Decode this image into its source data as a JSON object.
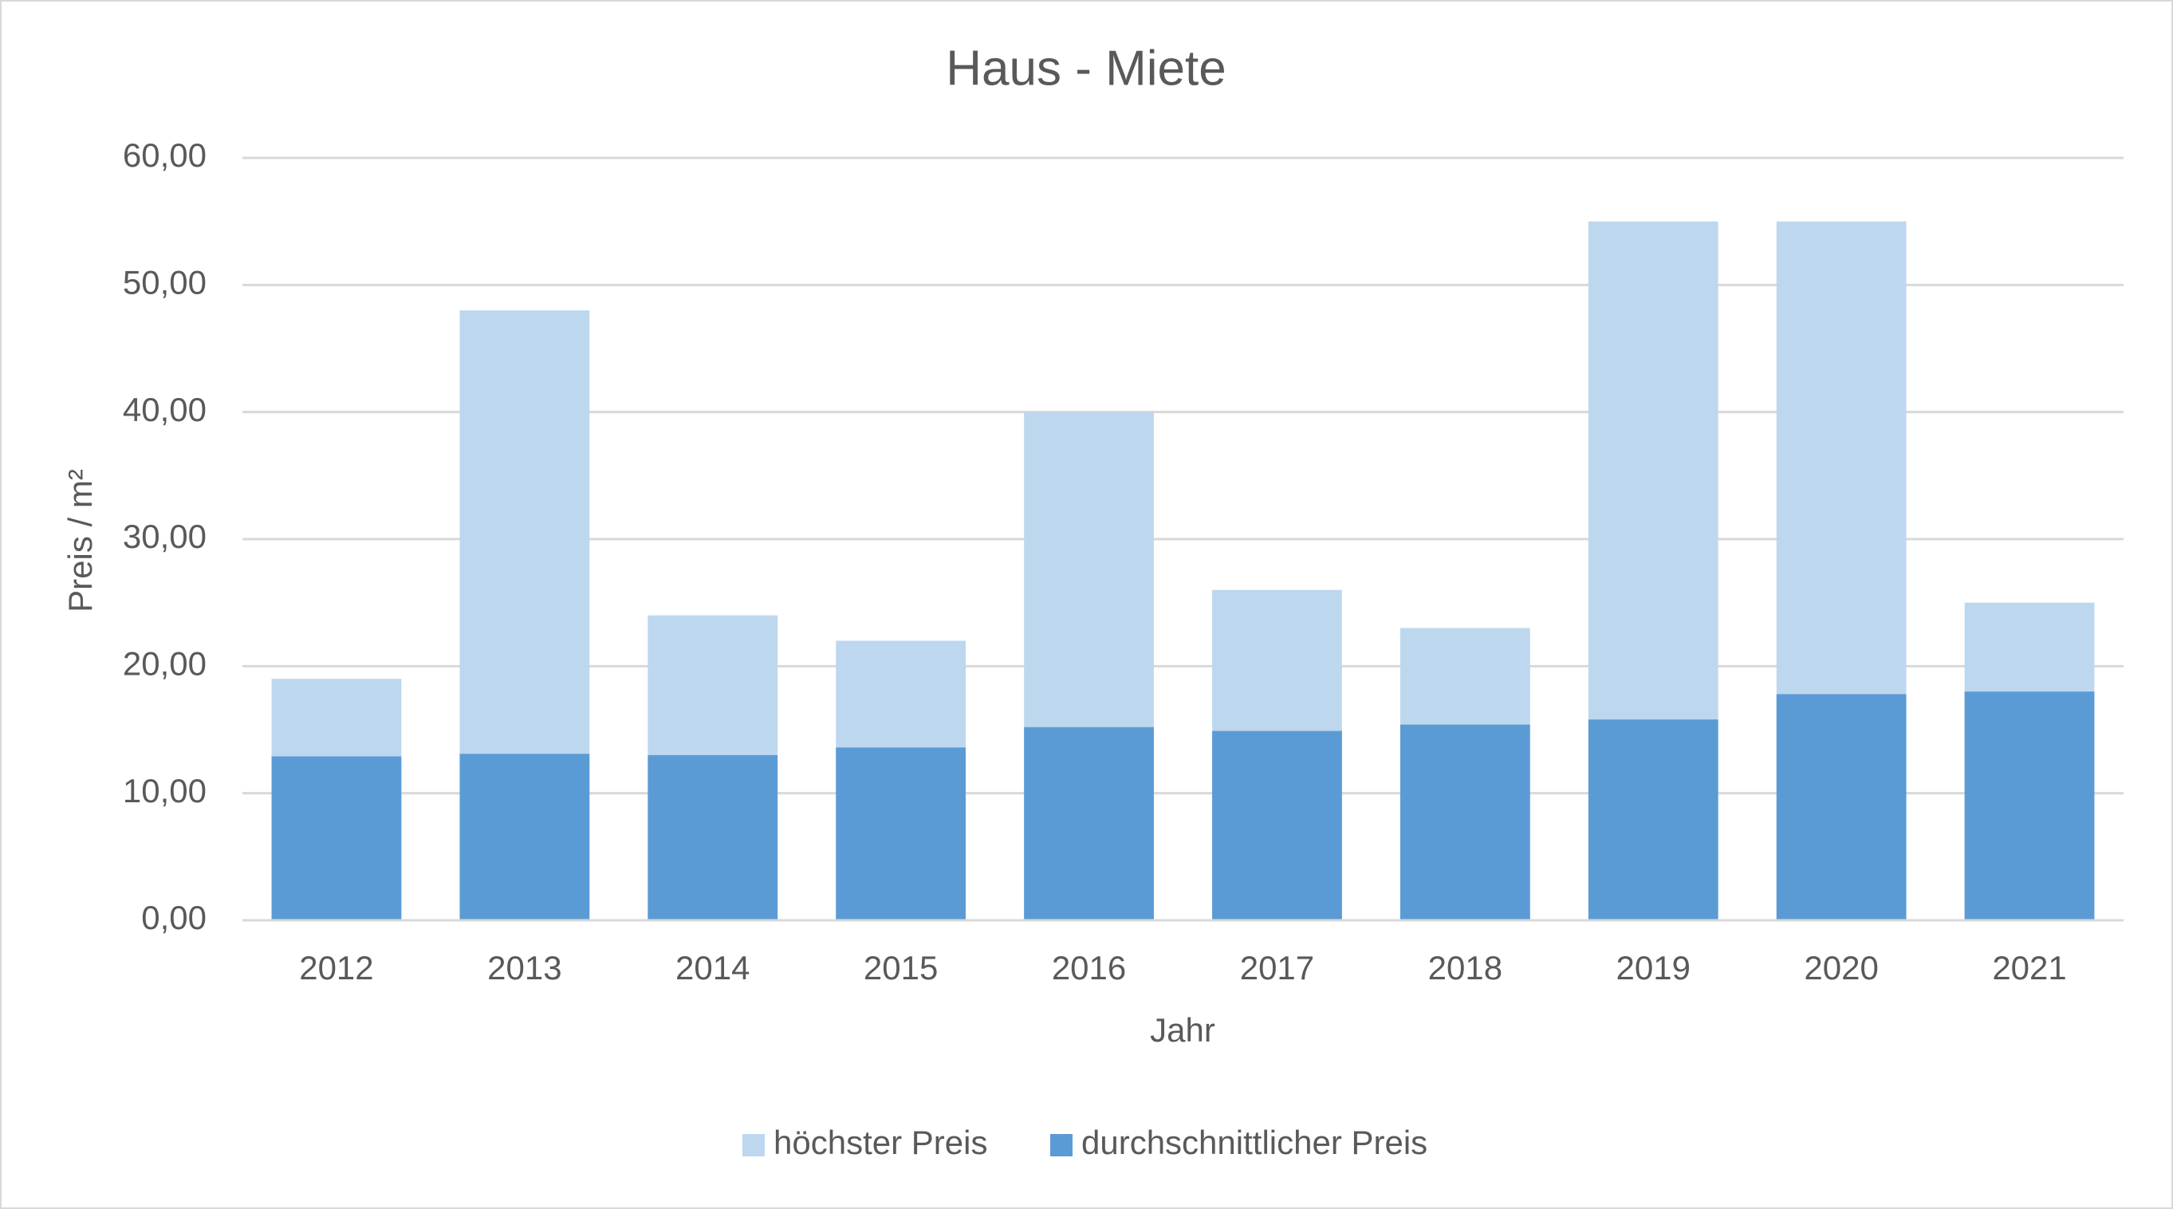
{
  "chart_data": {
    "type": "bar",
    "title": "Haus - Miete",
    "x_label": "Jahr",
    "y_label": "Preis / m²",
    "categories": [
      "2012",
      "2013",
      "2014",
      "2015",
      "2016",
      "2017",
      "2018",
      "2019",
      "2020",
      "2021"
    ],
    "series": [
      {
        "name": "höchster Preis",
        "color": "#bdd7ee",
        "values": [
          19,
          48,
          24,
          22,
          40,
          26,
          23,
          55,
          55,
          25
        ]
      },
      {
        "name": "durchschnittlicher Preis",
        "color": "#5b9bd5",
        "values": [
          12.9,
          13.1,
          13.0,
          13.6,
          15.2,
          14.9,
          15.4,
          15.8,
          17.8,
          18.0
        ]
      }
    ],
    "ylim": [
      0,
      60
    ],
    "yticks": [
      {
        "value": 0,
        "label": "0,00"
      },
      {
        "value": 10,
        "label": "10,00"
      },
      {
        "value": 20,
        "label": "20,00"
      },
      {
        "value": 30,
        "label": "30,00"
      },
      {
        "value": 40,
        "label": "40,00"
      },
      {
        "value": 50,
        "label": "50,00"
      },
      {
        "value": 60,
        "label": "60,00"
      }
    ],
    "grid": true,
    "legend": "bottom"
  }
}
